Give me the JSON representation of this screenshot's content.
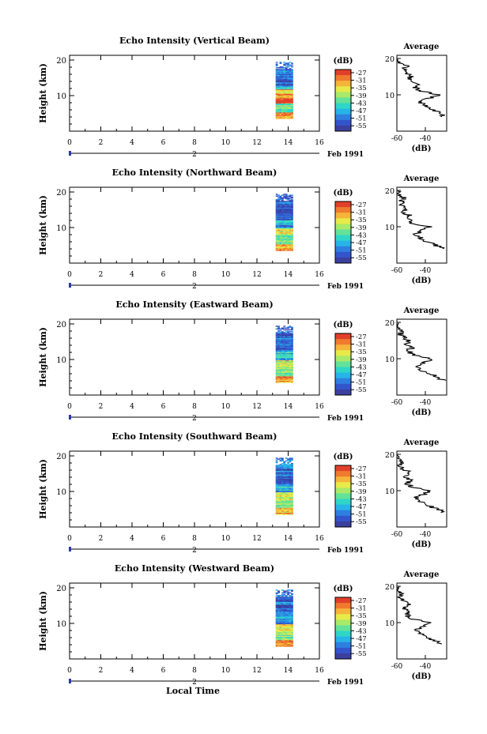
{
  "chart_data": [
    {
      "type": "heatmap",
      "title": "Echo Intensity (Vertical Beam)",
      "xlabel": "",
      "ylabel": "Height (km)",
      "xlim": [
        0,
        16
      ],
      "ylim": [
        0,
        20
      ],
      "x_ticks": [
        "0",
        "2",
        "4",
        "6",
        "8",
        "10",
        "12",
        "14",
        "16"
      ],
      "y_ticks": [
        "20",
        "10"
      ],
      "date_label": "Feb 1991",
      "time_marker": "2",
      "data_time_range": [
        13.2,
        14.3
      ],
      "data_height_range": [
        3.5,
        19.5
      ],
      "colorbar": {
        "unit": "(dB)",
        "ticks": [
          "-27",
          "-31",
          "-35",
          "-39",
          "-43",
          "-47",
          "-51",
          "-55"
        ]
      },
      "profile": {
        "title": "Average",
        "xlabel": "(dB)",
        "xlim": [
          -60,
          -25
        ],
        "x_ticks": [
          "-60",
          "-40"
        ],
        "y_ticks": [
          "20",
          "10"
        ],
        "heights": [
          4,
          5,
          6,
          7,
          8,
          9,
          10,
          11,
          12,
          13,
          14,
          15,
          16,
          17,
          18,
          19,
          20
        ],
        "values_db": [
          -27,
          -30,
          -35,
          -40,
          -44,
          -38,
          -30,
          -43,
          -47,
          -45,
          -52,
          -50,
          -53,
          -55,
          -52,
          -60,
          -62
        ]
      }
    },
    {
      "type": "heatmap",
      "title": "Echo Intensity (Northward Beam)",
      "xlabel": "",
      "ylabel": "Height (km)",
      "xlim": [
        0,
        16
      ],
      "ylim": [
        0,
        20
      ],
      "x_ticks": [
        "0",
        "2",
        "4",
        "6",
        "8",
        "10",
        "12",
        "14",
        "16"
      ],
      "y_ticks": [
        "20",
        "10"
      ],
      "date_label": "Feb 1991",
      "time_marker": "2",
      "data_time_range": [
        13.2,
        14.3
      ],
      "data_height_range": [
        3.5,
        19.5
      ],
      "colorbar": {
        "unit": "(dB)",
        "ticks": [
          "-27",
          "-31",
          "-35",
          "-39",
          "-43",
          "-47",
          "-51",
          "-55"
        ]
      },
      "profile": {
        "title": "Average",
        "xlabel": "(dB)",
        "xlim": [
          -60,
          -25
        ],
        "x_ticks": [
          "-60",
          "-40"
        ],
        "y_ticks": [
          "20",
          "10"
        ],
        "heights": [
          4,
          5,
          6,
          7,
          8,
          9,
          10,
          11,
          12,
          13,
          14,
          15,
          16,
          17,
          18,
          19,
          20
        ],
        "values_db": [
          -28,
          -33,
          -40,
          -44,
          -47,
          -42,
          -37,
          -50,
          -52,
          -51,
          -55,
          -53,
          -56,
          -57,
          -55,
          -60,
          -58
        ]
      }
    },
    {
      "type": "heatmap",
      "title": "Echo Intensity (Eastward Beam)",
      "xlabel": "",
      "ylabel": "Height (km)",
      "xlim": [
        0,
        16
      ],
      "ylim": [
        0,
        20
      ],
      "x_ticks": [
        "0",
        "2",
        "4",
        "6",
        "8",
        "10",
        "12",
        "14",
        "16"
      ],
      "y_ticks": [
        "20",
        "10"
      ],
      "date_label": "Feb 1991",
      "time_marker": "2",
      "data_time_range": [
        13.2,
        14.3
      ],
      "data_height_range": [
        3.5,
        19.5
      ],
      "colorbar": {
        "unit": "(dB)",
        "ticks": [
          "-27",
          "-31",
          "-35",
          "-39",
          "-43",
          "-47",
          "-51",
          "-55"
        ]
      },
      "profile": {
        "title": "Average",
        "xlabel": "(dB)",
        "xlim": [
          -60,
          -25
        ],
        "x_ticks": [
          "-60",
          "-40"
        ],
        "y_ticks": [
          "20",
          "10"
        ],
        "heights": [
          4,
          5,
          6,
          7,
          8,
          9,
          10,
          11,
          12,
          13,
          14,
          15,
          16,
          17,
          18,
          19,
          20
        ],
        "values_db": [
          -27,
          -32,
          -38,
          -43,
          -46,
          -40,
          -36,
          -48,
          -52,
          -50,
          -54,
          -52,
          -56,
          -58,
          -56,
          -62,
          -60
        ]
      }
    },
    {
      "type": "heatmap",
      "title": "Echo Intensity (Southward Beam)",
      "xlabel": "",
      "ylabel": "Height (km)",
      "xlim": [
        0,
        16
      ],
      "ylim": [
        0,
        20
      ],
      "x_ticks": [
        "0",
        "2",
        "4",
        "6",
        "8",
        "10",
        "12",
        "14",
        "16"
      ],
      "y_ticks": [
        "20",
        "10"
      ],
      "date_label": "Feb 1991",
      "time_marker": "2",
      "data_time_range": [
        13.2,
        14.3
      ],
      "data_height_range": [
        3.5,
        19.5
      ],
      "colorbar": {
        "unit": "(dB)",
        "ticks": [
          "-27",
          "-31",
          "-35",
          "-39",
          "-43",
          "-47",
          "-51",
          "-55"
        ]
      },
      "profile": {
        "title": "Average",
        "xlabel": "(dB)",
        "xlim": [
          -60,
          -25
        ],
        "x_ticks": [
          "-60",
          "-40"
        ],
        "y_ticks": [
          "20",
          "10"
        ],
        "heights": [
          4,
          5,
          6,
          7,
          8,
          9,
          10,
          11,
          12,
          13,
          14,
          15,
          16,
          17,
          18,
          19,
          20
        ],
        "values_db": [
          -27,
          -32,
          -39,
          -44,
          -47,
          -41,
          -36,
          -49,
          -53,
          -50,
          -55,
          -51,
          -56,
          -58,
          -55,
          -61,
          -59
        ]
      }
    },
    {
      "type": "heatmap",
      "title": "Echo Intensity (Westward Beam)",
      "xlabel": "Local Time",
      "ylabel": "Height (km)",
      "xlim": [
        0,
        16
      ],
      "ylim": [
        0,
        20
      ],
      "x_ticks": [
        "0",
        "2",
        "4",
        "6",
        "8",
        "10",
        "12",
        "14",
        "16"
      ],
      "y_ticks": [
        "20",
        "10"
      ],
      "date_label": "Feb 1991",
      "time_marker": "2",
      "data_time_range": [
        13.2,
        14.3
      ],
      "data_height_range": [
        3.5,
        19.5
      ],
      "colorbar": {
        "unit": "(dB)",
        "ticks": [
          "-27",
          "-31",
          "-35",
          "-39",
          "-43",
          "-47",
          "-51",
          "-55"
        ]
      },
      "profile": {
        "title": "Average",
        "xlabel": "(dB)",
        "xlim": [
          -60,
          -25
        ],
        "x_ticks": [
          "-60",
          "-40"
        ],
        "y_ticks": [
          "20",
          "10"
        ],
        "heights": [
          4,
          5,
          6,
          7,
          8,
          9,
          10,
          11,
          12,
          13,
          14,
          15,
          16,
          17,
          18,
          19,
          20
        ],
        "values_db": [
          -28,
          -33,
          -39,
          -44,
          -47,
          -42,
          -37,
          -49,
          -53,
          -51,
          -55,
          -52,
          -56,
          -58,
          -56,
          -61,
          -60
        ]
      }
    }
  ],
  "colormap": [
    "#3b3f9e",
    "#3355cc",
    "#2e7fe0",
    "#27b4e8",
    "#2fd6c8",
    "#63e29a",
    "#a9ea68",
    "#e8ea4a",
    "#f5b43a",
    "#f07a2e",
    "#e0402a"
  ]
}
